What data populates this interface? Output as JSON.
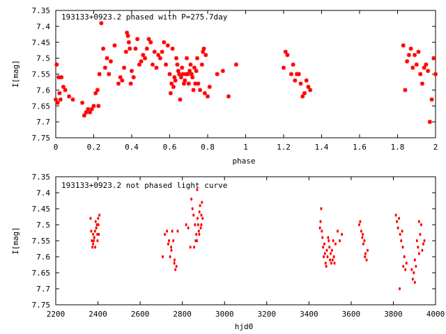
{
  "colors": {
    "points": "#ff0000",
    "axes": "#000000",
    "background": "#ffffff"
  },
  "chart_data": [
    {
      "type": "scatter",
      "title": "193133+0923.2 phased with P=275.7day",
      "xlabel": "phase",
      "ylabel": "I[mag]",
      "xlim": [
        0,
        2
      ],
      "ylim": [
        7.35,
        7.75
      ],
      "y_inverted": true,
      "grid": false,
      "marker": "asterisk",
      "xticks": [
        0,
        0.2,
        0.4,
        0.6,
        0.8,
        1,
        1.2,
        1.4,
        1.6,
        1.8,
        2
      ],
      "xtick_labels": [
        "0",
        "0.2",
        "0.4",
        "0.6",
        "0.8",
        "1",
        "1.2",
        "1.4",
        "1.6",
        "1.8",
        "2"
      ],
      "yticks": [
        7.35,
        7.4,
        7.45,
        7.5,
        7.55,
        7.6,
        7.65,
        7.7,
        7.75
      ],
      "ytick_labels": [
        "7.35",
        "7.4",
        "7.45",
        "7.5",
        "7.55",
        "7.6",
        "7.65",
        "7.7",
        "7.75"
      ],
      "series": [
        {
          "x": [
            0.0,
            0.005,
            0.01,
            0.015,
            0.02,
            0.025,
            0.03,
            0.04,
            0.05,
            0.07,
            0.09,
            0.14,
            0.15,
            0.16,
            0.17,
            0.18,
            0.19,
            0.2,
            0.21,
            0.22,
            0.225,
            0.23,
            0.24,
            0.25,
            0.26,
            0.27,
            0.28,
            0.29,
            0.31,
            0.33,
            0.34,
            0.35,
            0.36,
            0.37,
            0.375,
            0.38,
            0.385,
            0.39,
            0.395,
            0.4,
            0.41,
            0.42,
            0.43,
            0.44,
            0.45,
            0.46,
            0.47,
            0.48,
            0.49,
            0.5,
            0.51,
            0.52,
            0.53,
            0.54,
            0.55,
            0.56,
            0.57,
            0.58,
            0.59,
            0.6,
            0.605,
            0.61,
            0.615,
            0.62,
            0.625,
            0.63,
            0.635,
            0.64,
            0.645,
            0.65,
            0.655,
            0.66,
            0.665,
            0.67,
            0.675,
            0.68,
            0.685,
            0.69,
            0.695,
            0.7,
            0.705,
            0.71,
            0.715,
            0.72,
            0.725,
            0.73,
            0.735,
            0.74,
            0.745,
            0.75,
            0.76,
            0.77,
            0.775,
            0.78,
            0.785,
            0.79,
            0.8,
            0.81,
            0.85,
            0.88,
            0.91,
            0.95,
            1.2,
            1.21,
            1.22,
            1.24,
            1.25,
            1.26,
            1.27,
            1.28,
            1.29,
            1.3,
            1.31,
            1.32,
            1.33,
            1.34,
            1.83,
            1.84,
            1.85,
            1.86,
            1.87,
            1.88,
            1.89,
            1.9,
            1.91,
            1.92,
            1.93,
            1.94,
            1.95,
            1.96,
            1.97,
            1.98,
            1.99,
            2.0
          ],
          "y": [
            7.63,
            7.52,
            7.64,
            7.56,
            7.61,
            7.63,
            7.56,
            7.59,
            7.6,
            7.62,
            7.63,
            7.64,
            7.68,
            7.67,
            7.66,
            7.67,
            7.66,
            7.65,
            7.61,
            7.6,
            7.65,
            7.55,
            7.39,
            7.47,
            7.53,
            7.5,
            7.55,
            7.51,
            7.46,
            7.58,
            7.56,
            7.57,
            7.53,
            7.48,
            7.42,
            7.43,
            7.45,
            7.47,
            7.58,
            7.54,
            7.56,
            7.47,
            7.44,
            7.52,
            7.51,
            7.49,
            7.5,
            7.47,
            7.44,
            7.45,
            7.52,
            7.48,
            7.53,
            7.49,
            7.5,
            7.48,
            7.45,
            7.52,
            7.46,
            7.55,
            7.61,
            7.58,
            7.47,
            7.59,
            7.56,
            7.57,
            7.5,
            7.52,
            7.54,
            7.55,
            7.63,
            7.56,
            7.53,
            7.55,
            7.58,
            7.57,
            7.55,
            7.5,
            7.55,
            7.58,
            7.54,
            7.52,
            7.55,
            7.56,
            7.6,
            7.53,
            7.58,
            7.54,
            7.5,
            7.58,
            7.6,
            7.52,
            7.48,
            7.47,
            7.61,
            7.49,
            7.62,
            7.59,
            7.55,
            7.54,
            7.62,
            7.52,
            7.53,
            7.48,
            7.49,
            7.55,
            7.52,
            7.57,
            7.55,
            7.55,
            7.58,
            7.62,
            7.61,
            7.57,
            7.59,
            7.6,
            7.46,
            7.6,
            7.51,
            7.49,
            7.47,
            7.53,
            7.49,
            7.52,
            7.48,
            7.55,
            7.58,
            7.53,
            7.52,
            7.54,
            7.7,
            7.63,
            7.5,
            7.55
          ]
        }
      ]
    },
    {
      "type": "scatter",
      "title": "193133+0923.2 not phased light curve",
      "xlabel": "hjd0",
      "ylabel": "I[mag]",
      "xlim": [
        2200,
        4000
      ],
      "ylim": [
        7.35,
        7.75
      ],
      "y_inverted": true,
      "grid": false,
      "marker": "dot",
      "xticks": [
        2200,
        2400,
        2600,
        2800,
        3000,
        3200,
        3400,
        3600,
        3800,
        4000
      ],
      "xtick_labels": [
        "2200",
        "2400",
        "2600",
        "2800",
        "3000",
        "3200",
        "3400",
        "3600",
        "3800",
        "4000"
      ],
      "yticks": [
        7.35,
        7.4,
        7.45,
        7.5,
        7.55,
        7.6,
        7.65,
        7.7,
        7.75
      ],
      "ytick_labels": [
        "7.35",
        "7.4",
        "7.45",
        "7.5",
        "7.55",
        "7.6",
        "7.65",
        "7.7",
        "7.75"
      ],
      "series": [
        {
          "x": [
            2365,
            2368,
            2371,
            2374,
            2377,
            2380,
            2383,
            2386,
            2389,
            2392,
            2395,
            2398,
            2401,
            2404,
            2407,
            2377,
            2382,
            2387,
            2392,
            2397,
            2402,
            2707,
            2717,
            2727,
            2737,
            2742,
            2747,
            2752,
            2757,
            2762,
            2767,
            2772,
            2733,
            2748,
            2763,
            2778,
            2818,
            2828,
            2838,
            2843,
            2848,
            2853,
            2856,
            2860,
            2863,
            2866,
            2869,
            2872,
            2875,
            2878,
            2881,
            2884,
            2887,
            2890,
            2893,
            2896,
            2870,
            2880,
            2890,
            3452,
            3455,
            3458,
            3461,
            3464,
            3467,
            3470,
            3473,
            3476,
            3479,
            3482,
            3485,
            3488,
            3491,
            3494,
            3497,
            3500,
            3503,
            3506,
            3509,
            3512,
            3515,
            3518,
            3521,
            3526,
            3536,
            3546,
            3556,
            3638,
            3643,
            3648,
            3653,
            3658,
            3663,
            3668,
            3673,
            3678,
            3655,
            3665,
            3812,
            3817,
            3822,
            3827,
            3832,
            3837,
            3842,
            3847,
            3852,
            3857,
            3862,
            3830,
            3845,
            3887,
            3892,
            3897,
            3902,
            3907,
            3912,
            3917,
            3922,
            3927,
            3932,
            3937,
            3942,
            3947,
            3902,
            3922
          ],
          "y": [
            7.48,
            7.52,
            7.55,
            7.57,
            7.53,
            7.55,
            7.54,
            7.52,
            7.49,
            7.51,
            7.5,
            7.55,
            7.48,
            7.53,
            7.47,
            7.56,
            7.54,
            7.57,
            7.51,
            7.53,
            7.5,
            7.6,
            7.53,
            7.52,
            7.55,
            7.6,
            7.57,
            7.52,
            7.55,
            7.62,
            7.64,
            7.63,
            7.56,
            7.58,
            7.61,
            7.52,
            7.5,
            7.51,
            7.57,
            7.42,
            7.45,
            7.47,
            7.57,
            7.5,
            7.55,
            7.53,
            7.55,
            7.48,
            7.5,
            7.52,
            7.46,
            7.44,
            7.51,
            7.5,
            7.43,
            7.48,
            7.39,
            7.53,
            7.47,
            7.51,
            7.49,
            7.45,
            7.52,
            7.54,
            7.57,
            7.6,
            7.56,
            7.59,
            7.62,
            7.63,
            7.58,
            7.6,
            7.54,
            7.55,
            7.57,
            7.61,
            7.59,
            7.62,
            7.58,
            7.61,
            7.55,
            7.6,
            7.62,
            7.56,
            7.52,
            7.55,
            7.53,
            7.5,
            7.49,
            7.52,
            7.54,
            7.56,
            7.55,
            7.59,
            7.61,
            7.58,
            7.53,
            7.6,
            7.47,
            7.49,
            7.51,
            7.48,
            7.53,
            7.55,
            7.52,
            7.63,
            7.6,
            7.64,
            7.62,
            7.7,
            7.57,
            7.64,
            7.67,
            7.65,
            7.68,
            7.63,
            7.55,
            7.57,
            7.59,
            7.53,
            7.5,
            7.58,
            7.56,
            7.55,
            7.61,
            7.49
          ]
        }
      ]
    }
  ]
}
